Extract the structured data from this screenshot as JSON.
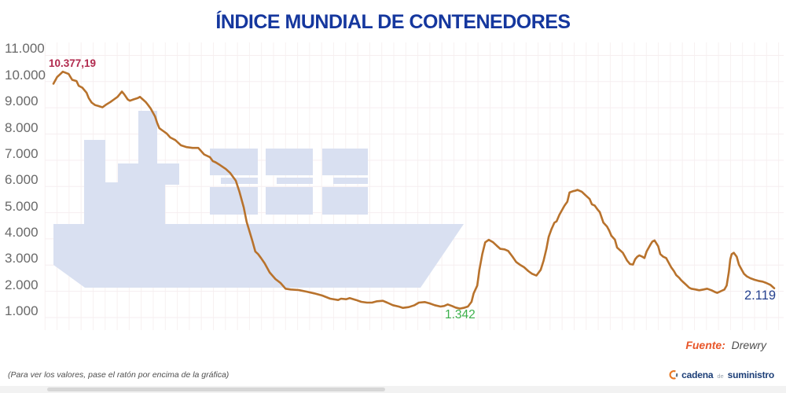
{
  "title": "ÍNDICE MUNDIAL DE CONTENEDORES",
  "chart_data": {
    "type": "line",
    "title": "ÍNDICE MUNDIAL DE CONTENEDORES",
    "source": "Drewry",
    "grid": true,
    "y_axis": {
      "range": [
        1000,
        11000
      ],
      "tick_labels": [
        "11.000",
        "10.000",
        "9.000",
        "8.000",
        "7.000",
        "6.000",
        "5.000",
        "4.000",
        "3.000",
        "2.000",
        "1.000"
      ]
    },
    "x_axis": {
      "label": "",
      "tick_labels": []
    },
    "line_color": "#b8722c",
    "watermark_color": "#d9e0f1",
    "annotations": [
      {
        "id": "peak",
        "text": "10.377,19",
        "value": 10377.19,
        "color": "#b12a4e"
      },
      {
        "id": "min",
        "text": "1.342",
        "value": 1342,
        "color": "#3cb04b"
      },
      {
        "id": "last",
        "text": "2.119",
        "value": 2119,
        "color": "#26418f"
      }
    ],
    "series": [
      {
        "name": "Índice mundial de contenedores",
        "color": "#b8722c",
        "points": [
          [
            0,
            9920
          ],
          [
            0.5,
            10170
          ],
          [
            1.0,
            10300
          ],
          [
            1.3,
            10377
          ],
          [
            2.1,
            10290
          ],
          [
            2.6,
            10070
          ],
          [
            3.2,
            10020
          ],
          [
            3.5,
            9840
          ],
          [
            4.0,
            9770
          ],
          [
            4.6,
            9570
          ],
          [
            4.9,
            9370
          ],
          [
            5.3,
            9200
          ],
          [
            5.8,
            9100
          ],
          [
            6.2,
            9070
          ],
          [
            6.8,
            9020
          ],
          [
            7.3,
            9120
          ],
          [
            7.9,
            9220
          ],
          [
            8.4,
            9320
          ],
          [
            8.9,
            9420
          ],
          [
            9.5,
            9620
          ],
          [
            9.8,
            9520
          ],
          [
            10.3,
            9320
          ],
          [
            10.6,
            9270
          ],
          [
            11.1,
            9320
          ],
          [
            11.7,
            9370
          ],
          [
            12.0,
            9420
          ],
          [
            12.4,
            9320
          ],
          [
            12.8,
            9220
          ],
          [
            13.1,
            9120
          ],
          [
            13.5,
            8970
          ],
          [
            14.1,
            8670
          ],
          [
            14.4,
            8420
          ],
          [
            14.7,
            8220
          ],
          [
            15.2,
            8120
          ],
          [
            15.7,
            8020
          ],
          [
            16.2,
            7870
          ],
          [
            16.9,
            7770
          ],
          [
            17.7,
            7570
          ],
          [
            18.5,
            7500
          ],
          [
            19.3,
            7470
          ],
          [
            20.1,
            7470
          ],
          [
            20.9,
            7220
          ],
          [
            21.7,
            7120
          ],
          [
            22.1,
            6970
          ],
          [
            22.5,
            6920
          ],
          [
            23.1,
            6820
          ],
          [
            23.9,
            6670
          ],
          [
            24.5,
            6520
          ],
          [
            25.3,
            6220
          ],
          [
            25.8,
            5800
          ],
          [
            26.4,
            5200
          ],
          [
            26.8,
            4650
          ],
          [
            27.3,
            4200
          ],
          [
            27.6,
            3920
          ],
          [
            28.0,
            3520
          ],
          [
            28.4,
            3420
          ],
          [
            28.8,
            3270
          ],
          [
            29.3,
            3070
          ],
          [
            30.0,
            2720
          ],
          [
            30.8,
            2470
          ],
          [
            31.5,
            2320
          ],
          [
            32.2,
            2100
          ],
          [
            32.9,
            2070
          ],
          [
            34.0,
            2050
          ],
          [
            35.1,
            1990
          ],
          [
            36.2,
            1920
          ],
          [
            37.3,
            1840
          ],
          [
            38.4,
            1720
          ],
          [
            39.5,
            1670
          ],
          [
            39.9,
            1720
          ],
          [
            40.6,
            1700
          ],
          [
            41.1,
            1740
          ],
          [
            42.0,
            1670
          ],
          [
            42.7,
            1600
          ],
          [
            43.5,
            1570
          ],
          [
            44.2,
            1570
          ],
          [
            44.9,
            1620
          ],
          [
            45.7,
            1640
          ],
          [
            46.3,
            1570
          ],
          [
            47.1,
            1470
          ],
          [
            47.9,
            1420
          ],
          [
            48.5,
            1370
          ],
          [
            49.3,
            1400
          ],
          [
            50.1,
            1470
          ],
          [
            50.7,
            1570
          ],
          [
            51.5,
            1590
          ],
          [
            52.2,
            1540
          ],
          [
            52.9,
            1470
          ],
          [
            53.7,
            1420
          ],
          [
            54.2,
            1440
          ],
          [
            54.7,
            1500
          ],
          [
            55.3,
            1440
          ],
          [
            55.8,
            1380
          ],
          [
            56.4,
            1342
          ],
          [
            56.9,
            1370
          ],
          [
            57.5,
            1420
          ],
          [
            58.0,
            1600
          ],
          [
            58.3,
            1920
          ],
          [
            58.8,
            2220
          ],
          [
            59.1,
            2820
          ],
          [
            59.5,
            3420
          ],
          [
            59.9,
            3870
          ],
          [
            60.4,
            3964
          ],
          [
            61.0,
            3870
          ],
          [
            61.5,
            3740
          ],
          [
            62.0,
            3620
          ],
          [
            62.6,
            3600
          ],
          [
            63.1,
            3540
          ],
          [
            63.7,
            3320
          ],
          [
            64.2,
            3120
          ],
          [
            64.8,
            3000
          ],
          [
            65.3,
            2920
          ],
          [
            65.9,
            2770
          ],
          [
            66.4,
            2670
          ],
          [
            67.0,
            2600
          ],
          [
            67.6,
            2820
          ],
          [
            68.0,
            3170
          ],
          [
            68.4,
            3620
          ],
          [
            68.7,
            4070
          ],
          [
            69.1,
            4370
          ],
          [
            69.5,
            4620
          ],
          [
            69.8,
            4670
          ],
          [
            70.2,
            4920
          ],
          [
            70.6,
            5120
          ],
          [
            70.9,
            5270
          ],
          [
            71.3,
            5420
          ],
          [
            71.6,
            5770
          ],
          [
            72.1,
            5820
          ],
          [
            72.4,
            5840
          ],
          [
            72.7,
            5870
          ],
          [
            73.3,
            5800
          ],
          [
            73.8,
            5670
          ],
          [
            74.4,
            5520
          ],
          [
            74.7,
            5320
          ],
          [
            75.1,
            5270
          ],
          [
            75.5,
            5120
          ],
          [
            75.8,
            5020
          ],
          [
            76.3,
            4620
          ],
          [
            76.8,
            4470
          ],
          [
            77.1,
            4320
          ],
          [
            77.4,
            4120
          ],
          [
            77.9,
            3970
          ],
          [
            78.2,
            3670
          ],
          [
            78.6,
            3570
          ],
          [
            79.0,
            3470
          ],
          [
            79.3,
            3320
          ],
          [
            79.6,
            3170
          ],
          [
            80.0,
            3040
          ],
          [
            80.4,
            3020
          ],
          [
            80.7,
            3220
          ],
          [
            81.0,
            3320
          ],
          [
            81.3,
            3370
          ],
          [
            81.7,
            3320
          ],
          [
            82.0,
            3270
          ],
          [
            82.3,
            3520
          ],
          [
            82.8,
            3770
          ],
          [
            83.1,
            3900
          ],
          [
            83.4,
            3940
          ],
          [
            83.9,
            3720
          ],
          [
            84.2,
            3420
          ],
          [
            84.6,
            3320
          ],
          [
            85.0,
            3270
          ],
          [
            85.3,
            3120
          ],
          [
            85.7,
            2920
          ],
          [
            86.1,
            2770
          ],
          [
            86.4,
            2620
          ],
          [
            86.8,
            2520
          ],
          [
            87.1,
            2420
          ],
          [
            87.5,
            2320
          ],
          [
            87.9,
            2220
          ],
          [
            88.2,
            2140
          ],
          [
            88.5,
            2100
          ],
          [
            89.1,
            2070
          ],
          [
            89.6,
            2040
          ],
          [
            90.2,
            2070
          ],
          [
            90.7,
            2100
          ],
          [
            91.3,
            2040
          ],
          [
            91.8,
            1970
          ],
          [
            92.1,
            1940
          ],
          [
            92.7,
            2020
          ],
          [
            93.1,
            2070
          ],
          [
            93.4,
            2220
          ],
          [
            93.7,
            2720
          ],
          [
            93.9,
            3220
          ],
          [
            94.1,
            3420
          ],
          [
            94.4,
            3470
          ],
          [
            94.8,
            3320
          ],
          [
            95.1,
            3020
          ],
          [
            95.5,
            2820
          ],
          [
            95.8,
            2670
          ],
          [
            96.2,
            2570
          ],
          [
            96.7,
            2500
          ],
          [
            97.3,
            2440
          ],
          [
            97.8,
            2400
          ],
          [
            98.4,
            2370
          ],
          [
            98.9,
            2320
          ],
          [
            99.5,
            2240
          ],
          [
            100,
            2119
          ]
        ]
      }
    ]
  },
  "footer": {
    "source_label": "Fuente:",
    "source_value": "Drewry",
    "hint": "(Para ver los valores, pase el ratón por encima de la gráfica)",
    "brand": {
      "word1": "cadena",
      "word2": "de",
      "word3": "suministro"
    }
  },
  "colors": {
    "title": "#15379e",
    "axis_label": "#696969",
    "gridline": "#f6eef0",
    "brand_navy": "#1c3e77",
    "brand_orange": "#e87722"
  }
}
